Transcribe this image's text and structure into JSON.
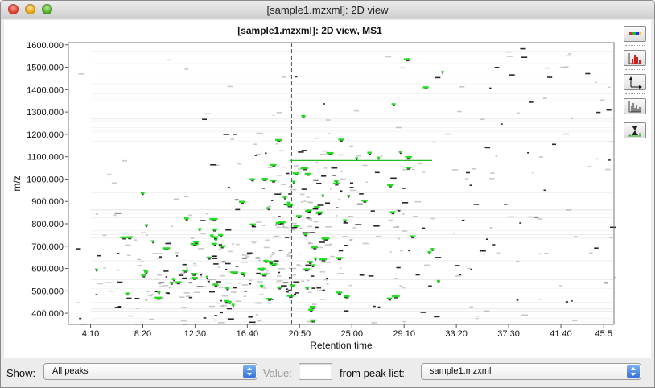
{
  "window": {
    "title": "[sample1.mzxml]: 2D view"
  },
  "chart_title": "[sample1.mzxml]: 2D view, MS1",
  "toolbar": {
    "buttons": [
      {
        "name": "toggle-palette-button",
        "icon": "color-palette-icon"
      },
      {
        "name": "toggle-peak-display-button",
        "icon": "peaks-icon"
      },
      {
        "name": "axes-setup-button",
        "icon": "axes-icon"
      },
      {
        "name": "show-spectrum-button",
        "icon": "spectrum-icon"
      },
      {
        "name": "show-chromatogram-button",
        "icon": "chromatogram-icon"
      }
    ]
  },
  "chart_data": {
    "type": "heatmap",
    "title": "[sample1.mzxml]: 2D view, MS1",
    "xlabel": "Retention time",
    "ylabel": "m/z",
    "x_ticks": [
      "4:10",
      "8:20",
      "12:30",
      "16:40",
      "20:50",
      "25:00",
      "29:10",
      "33:20",
      "37:30",
      "41:40",
      "45:5"
    ],
    "y_ticks": [
      "400.000",
      "500.000",
      "600.000",
      "700.000",
      "800.000",
      "900.000",
      "1000.000",
      "1100.000",
      "1200.000",
      "1300.000",
      "1400.000",
      "1500.000",
      "1600.000"
    ],
    "x_range_minutes": [
      2.4,
      45.9
    ],
    "y_range": [
      350,
      1610
    ],
    "cursor_rt_minutes": 20.2,
    "highlight_line": {
      "rt_start_minutes": 20.1,
      "rt_end_minutes": 31.4,
      "mz": 1083
    },
    "colors": {
      "peaks": "#22dd22",
      "signal": "#111111",
      "background": "#ffffff",
      "cursor": "#555555"
    }
  },
  "bottom": {
    "show_label": "Show:",
    "show_value": "All peaks",
    "value_label": "Value:",
    "value_input": "",
    "from_label": "from peak list:",
    "peaklist_value": "sample1.mzxml"
  }
}
